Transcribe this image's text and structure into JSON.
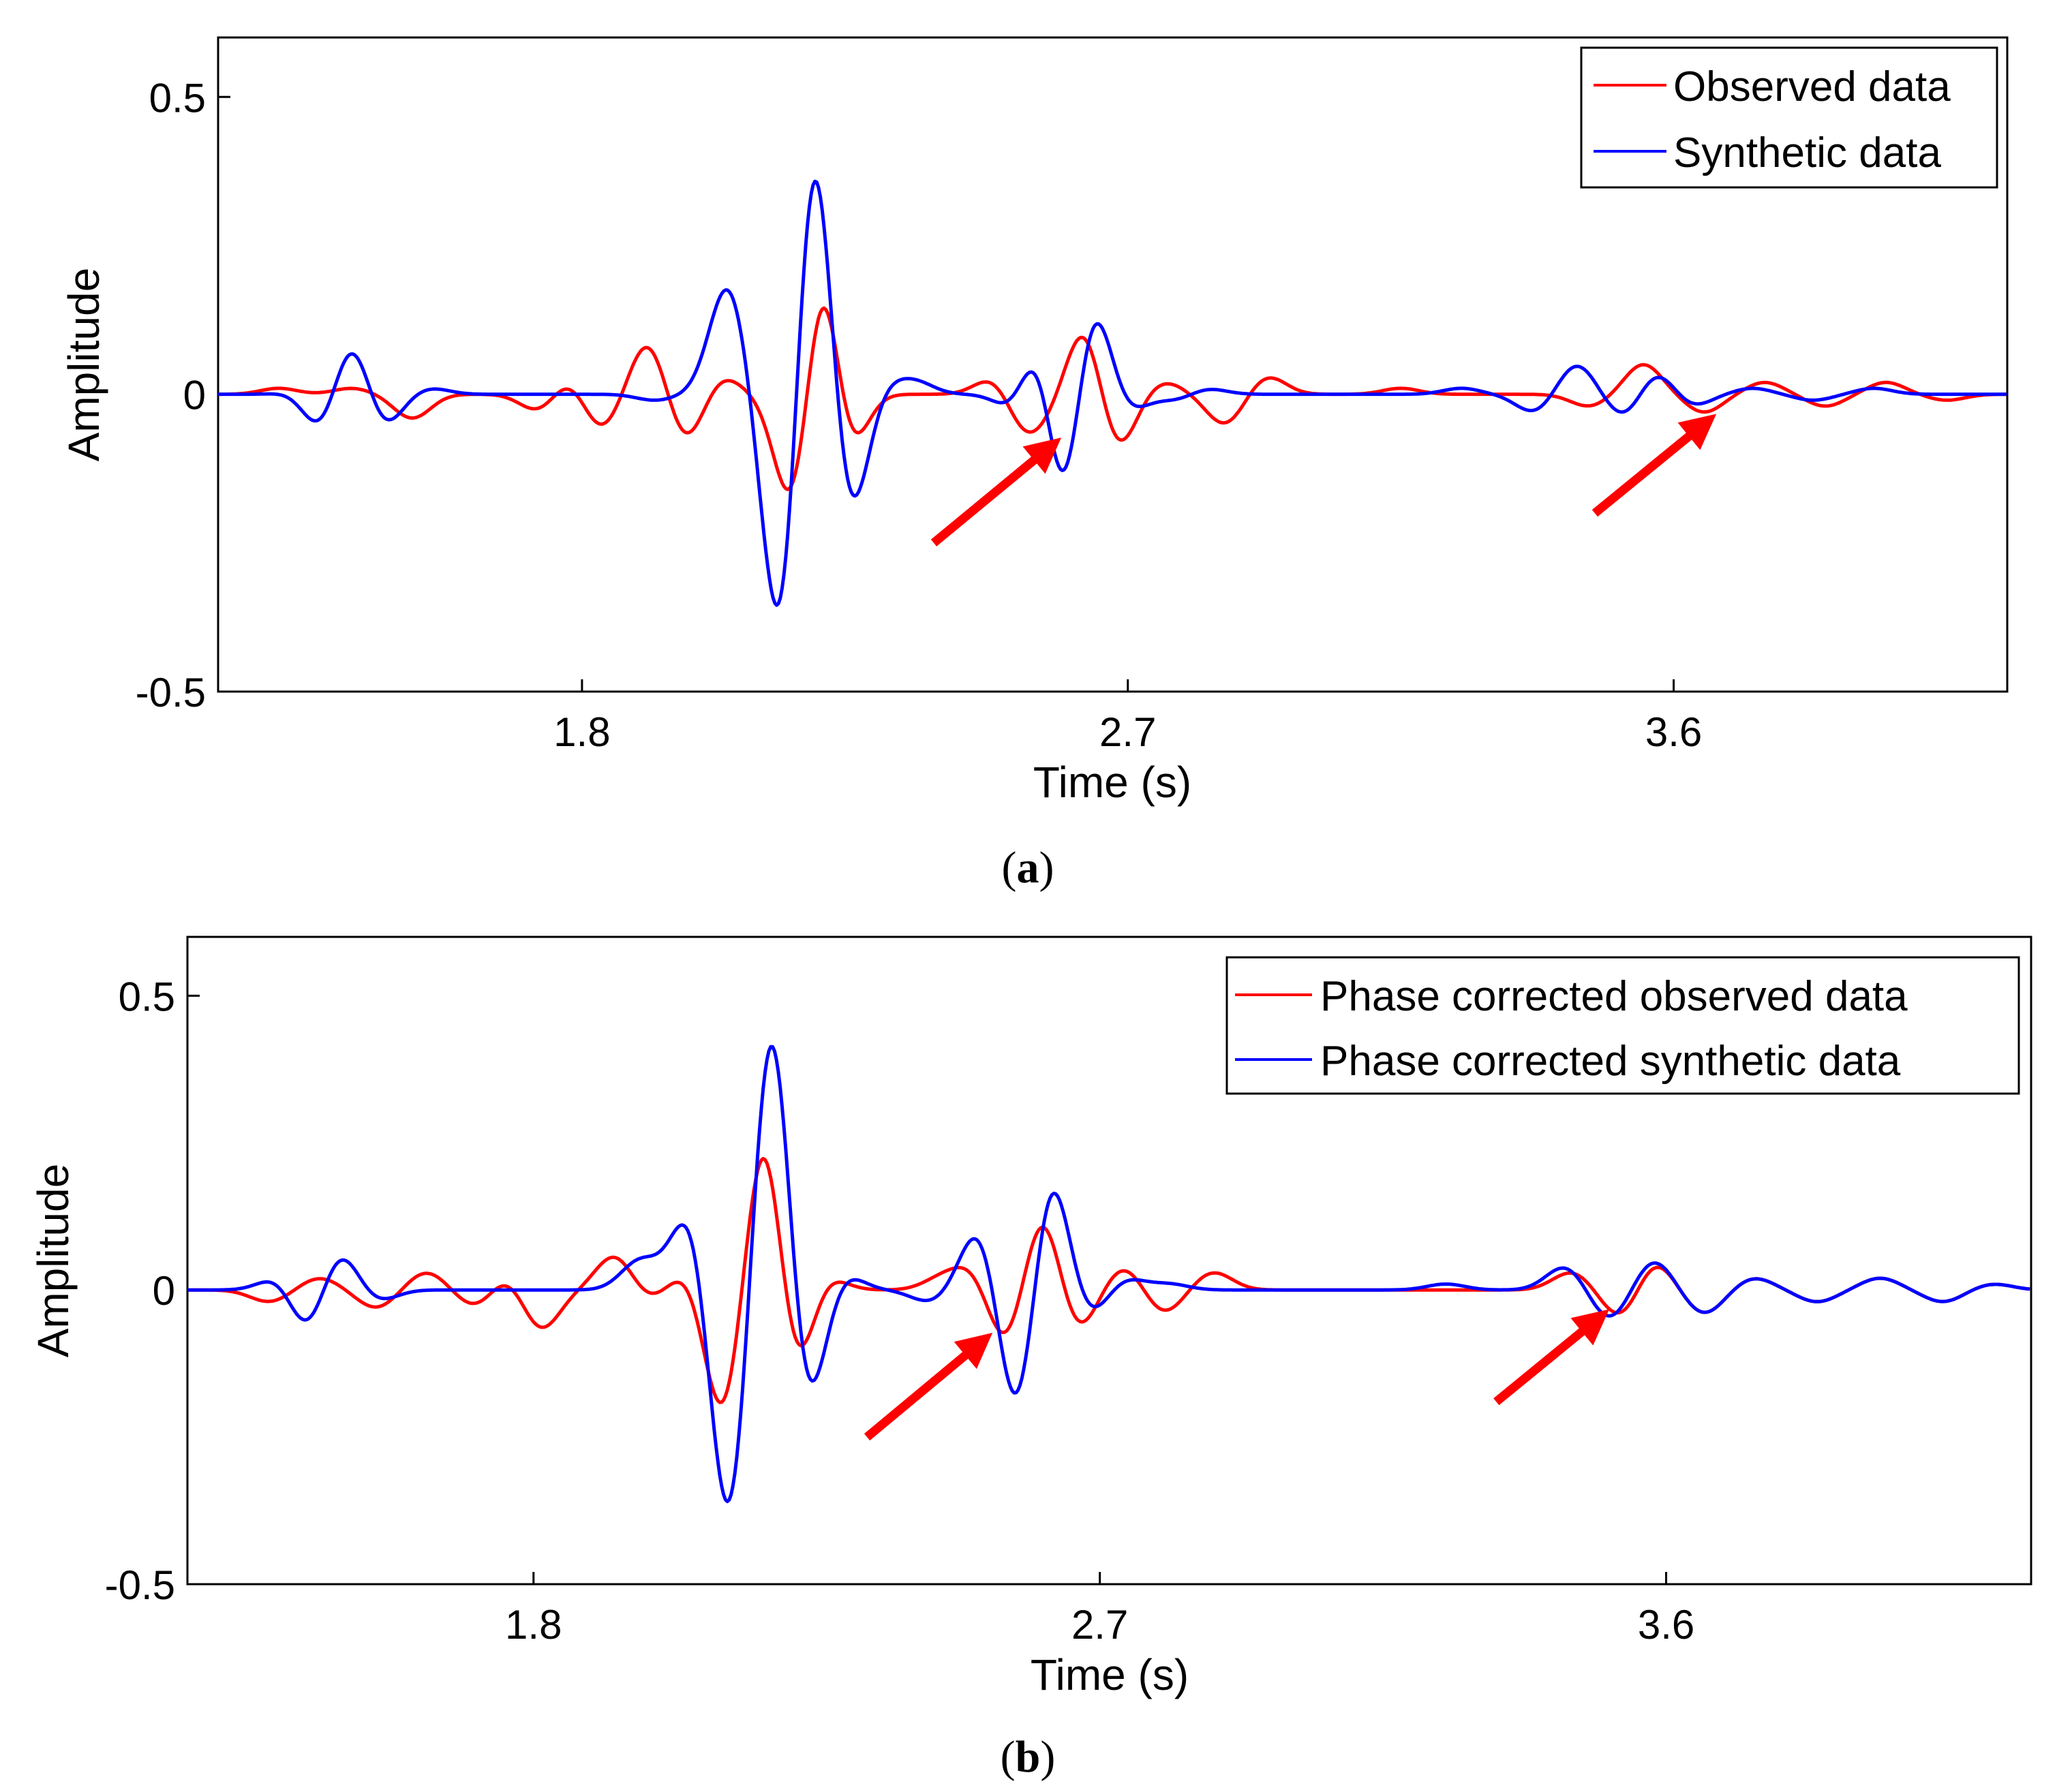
{
  "colors": {
    "observed": "#ff0000",
    "synthetic": "#0000ff",
    "arrow": "#ff0000",
    "axes": "#000000",
    "background": "#ffffff"
  },
  "chart_data": [
    {
      "panel": "a",
      "caption": "a",
      "type": "line",
      "xlabel": "Time (s)",
      "ylabel": "Amplitude",
      "xlim": [
        1.2,
        4.15
      ],
      "ylim": [
        -0.5,
        0.6
      ],
      "xticks": [
        1.8,
        2.7,
        3.6
      ],
      "xtick_labels": [
        "1.8",
        "2.7",
        "3.6"
      ],
      "yticks": [
        -0.5,
        0,
        0.5
      ],
      "ytick_labels": [
        "-0.5",
        "0",
        "0.5"
      ],
      "grid": false,
      "legend_position": "top-right",
      "series": [
        {
          "name": "Observed data",
          "color": "#ff0000",
          "events": [
            [
              1.3,
              0.01,
              0.03
            ],
            [
              1.42,
              0.01,
              0.03
            ],
            [
              1.52,
              -0.04,
              0.03
            ],
            [
              1.58,
              0.05,
              0.03
            ],
            [
              1.58,
              -0.05,
              0.03
            ],
            [
              1.73,
              -0.03,
              0.03
            ],
            [
              1.78,
              0.03,
              0.03
            ],
            [
              1.83,
              -0.06,
              0.03
            ],
            [
              1.91,
              0.09,
              0.03
            ],
            [
              1.97,
              -0.08,
              0.03
            ],
            [
              2.03,
              0.03,
              0.03
            ],
            [
              2.15,
              -0.21,
              0.03
            ],
            [
              2.2,
              0.3,
              0.03
            ],
            [
              2.23,
              -0.21,
              0.03
            ],
            [
              2.23,
              0.04,
              0.03
            ],
            [
              2.48,
              0.03,
              0.03
            ],
            [
              2.53,
              -0.06,
              0.03
            ],
            [
              2.57,
              -0.02,
              0.03
            ],
            [
              2.63,
              0.12,
              0.03
            ],
            [
              2.68,
              -0.1,
              0.03
            ],
            [
              2.76,
              0.02,
              0.03
            ],
            [
              2.86,
              -0.05,
              0.03
            ],
            [
              2.93,
              0.03,
              0.03
            ],
            [
              3.15,
              0.01,
              0.03
            ],
            [
              3.46,
              -0.02,
              0.03
            ],
            [
              3.55,
              0.05,
              0.03
            ],
            [
              3.65,
              -0.03,
              0.03
            ],
            [
              3.75,
              0.02,
              0.03
            ],
            [
              3.85,
              -0.02,
              0.03
            ],
            [
              3.95,
              0.02,
              0.03
            ],
            [
              4.05,
              -0.01,
              0.03
            ]
          ],
          "step": 0.003
        },
        {
          "name": "Synthetic data",
          "color": "#0000ff",
          "events": [
            [
              1.34,
              0.01,
              0.03
            ],
            [
              1.37,
              -0.07,
              0.03
            ],
            [
              1.42,
              0.1,
              0.03
            ],
            [
              1.47,
              -0.06,
              0.03
            ],
            [
              1.55,
              0.01,
              0.03
            ],
            [
              1.92,
              -0.01,
              0.03
            ],
            [
              2.04,
              0.18,
              0.03
            ],
            [
              2.13,
              -0.45,
              0.03
            ],
            [
              2.18,
              0.49,
              0.03
            ],
            [
              2.24,
              -0.22,
              0.03
            ],
            [
              2.3,
              0.02,
              0.03
            ],
            [
              2.35,
              0.02,
              0.03
            ],
            [
              2.52,
              -0.04,
              0.03
            ],
            [
              2.56,
              0.17,
              0.03
            ],
            [
              2.59,
              -0.27,
              0.03
            ],
            [
              2.64,
              0.17,
              0.03
            ],
            [
              2.7,
              -0.03,
              0.03
            ],
            [
              2.78,
              -0.01,
              0.03
            ],
            [
              2.83,
              0.01,
              0.03
            ],
            [
              3.25,
              0.01,
              0.03
            ],
            [
              3.37,
              -0.03,
              0.03
            ],
            [
              3.44,
              0.05,
              0.03
            ],
            [
              3.52,
              -0.04,
              0.03
            ],
            [
              3.57,
              0.04,
              0.03
            ],
            [
              3.63,
              -0.02,
              0.03
            ],
            [
              3.73,
              0.01,
              0.03
            ],
            [
              3.83,
              -0.01,
              0.03
            ],
            [
              3.93,
              0.01,
              0.03
            ]
          ],
          "step": 0.003
        }
      ],
      "annotations": [
        {
          "type": "arrow",
          "from": [
            2.38,
            -0.25
          ],
          "to": [
            2.57,
            -0.09
          ],
          "color": "#ff0000"
        },
        {
          "type": "arrow",
          "from": [
            3.47,
            -0.2
          ],
          "to": [
            3.65,
            -0.05
          ],
          "color": "#ff0000"
        }
      ]
    },
    {
      "panel": "b",
      "caption": "b",
      "type": "line",
      "xlabel": "Time (s)",
      "ylabel": "Amplitude",
      "xlim": [
        1.25,
        4.18
      ],
      "ylim": [
        -0.5,
        0.6
      ],
      "xticks": [
        1.8,
        2.7,
        3.6
      ],
      "xtick_labels": [
        "1.8",
        "2.7",
        "3.6"
      ],
      "yticks": [
        -0.5,
        0,
        0.5
      ],
      "ytick_labels": [
        "-0.5",
        "0",
        "0.5"
      ],
      "grid": false,
      "legend_position": "top-right",
      "series": [
        {
          "name": "Phase corrected observed data",
          "color": "#ff0000",
          "events": [
            [
              1.38,
              -0.02,
              0.03
            ],
            [
              1.46,
              0.02,
              0.03
            ],
            [
              1.55,
              -0.03,
              0.03
            ],
            [
              1.63,
              0.03,
              0.03
            ],
            [
              1.71,
              -0.03,
              0.03
            ],
            [
              1.76,
              0.03,
              0.03
            ],
            [
              1.81,
              -0.07,
              0.03
            ],
            [
              1.93,
              0.06,
              0.03
            ],
            [
              1.98,
              -0.02,
              0.03
            ],
            [
              2.05,
              0.04,
              0.03
            ],
            [
              2.1,
              -0.22,
              0.03
            ],
            [
              2.17,
              0.31,
              0.03
            ],
            [
              2.21,
              -0.19,
              0.03
            ],
            [
              2.26,
              0.03,
              0.03
            ],
            [
              2.45,
              0.02,
              0.03
            ],
            [
              2.5,
              0.04,
              0.03
            ],
            [
              2.55,
              -0.1,
              0.03
            ],
            [
              2.61,
              0.14,
              0.03
            ],
            [
              2.66,
              -0.08,
              0.03
            ],
            [
              2.74,
              0.04,
              0.03
            ],
            [
              2.8,
              -0.04,
              0.03
            ],
            [
              2.88,
              0.03,
              0.03
            ],
            [
              3.45,
              0.03,
              0.03
            ],
            [
              3.53,
              -0.05,
              0.03
            ],
            [
              3.58,
              0.05,
              0.03
            ],
            [
              3.66,
              -0.04,
              0.03
            ],
            [
              3.74,
              0.02,
              0.03
            ],
            [
              3.84,
              -0.02,
              0.03
            ],
            [
              3.94,
              0.02,
              0.03
            ],
            [
              4.04,
              -0.02,
              0.03
            ],
            [
              4.12,
              0.01,
              0.03
            ]
          ],
          "step": 0.003
        },
        {
          "name": "Phase corrected synthetic data",
          "color": "#0000ff",
          "events": [
            [
              1.4,
              0.03,
              0.03
            ],
            [
              1.44,
              -0.08,
              0.03
            ],
            [
              1.49,
              0.07,
              0.03
            ],
            [
              1.55,
              -0.02,
              0.03
            ],
            [
              1.97,
              0.05,
              0.03
            ],
            [
              2.05,
              0.14,
              0.03
            ],
            [
              2.11,
              -0.41,
              0.03
            ],
            [
              2.18,
              0.5,
              0.03
            ],
            [
              2.23,
              -0.24,
              0.03
            ],
            [
              2.29,
              0.03,
              0.03
            ],
            [
              2.43,
              -0.02,
              0.03
            ],
            [
              2.51,
              0.11,
              0.03
            ],
            [
              2.57,
              -0.24,
              0.03
            ],
            [
              2.62,
              0.22,
              0.03
            ],
            [
              2.68,
              -0.05,
              0.03
            ],
            [
              2.74,
              0.02,
              0.03
            ],
            [
              2.81,
              0.01,
              0.03
            ],
            [
              3.25,
              0.01,
              0.03
            ],
            [
              3.44,
              0.04,
              0.03
            ],
            [
              3.51,
              -0.05,
              0.03
            ],
            [
              3.58,
              0.05,
              0.03
            ],
            [
              3.66,
              -0.04,
              0.03
            ],
            [
              3.74,
              0.02,
              0.03
            ],
            [
              3.84,
              -0.02,
              0.03
            ],
            [
              3.94,
              0.02,
              0.03
            ],
            [
              4.04,
              -0.02,
              0.03
            ],
            [
              4.12,
              0.01,
              0.03
            ]
          ],
          "step": 0.003
        }
      ],
      "annotations": [
        {
          "type": "arrow",
          "from": [
            2.33,
            -0.25
          ],
          "to": [
            2.51,
            -0.09
          ],
          "color": "#ff0000"
        },
        {
          "type": "arrow",
          "from": [
            3.33,
            -0.19
          ],
          "to": [
            3.49,
            -0.05
          ],
          "color": "#ff0000"
        }
      ]
    }
  ]
}
